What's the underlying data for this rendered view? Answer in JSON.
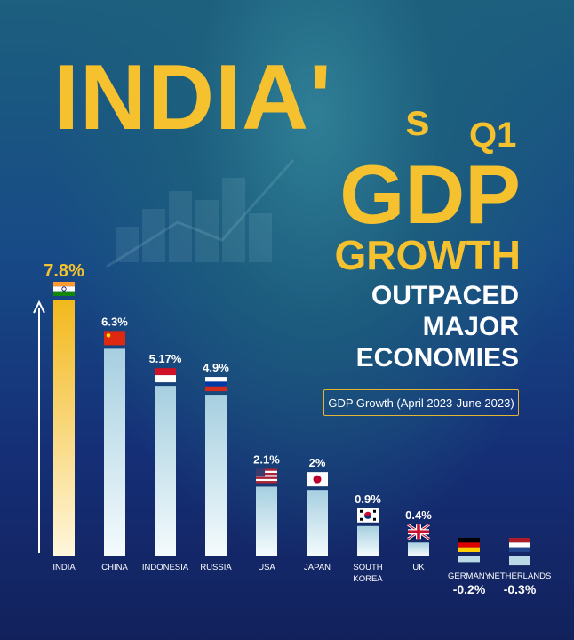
{
  "title": {
    "line1": "INDIA'",
    "line1_s": "s",
    "line1_q1": "Q1",
    "line2": "GDP",
    "line3": "GROWTH",
    "subtitle_lines": [
      "OUTPACED",
      "MAJOR",
      "ECONOMIES"
    ]
  },
  "period_label": "GDP Growth (April 2023-June 2023)",
  "colors": {
    "title": "#f6c12e",
    "highlight_bar_top": "#f2b81c",
    "highlight_bar_bottom": "#fff6dc",
    "bar_top": "#a6cfe0",
    "bar_bottom": "#f4fbfd",
    "text": "#ffffff"
  },
  "chart_data": {
    "type": "bar",
    "unit": "%",
    "categories": [
      "INDIA",
      "CHINA",
      "INDONESIA",
      "RUSSIA",
      "USA",
      "JAPAN",
      "SOUTH KOREA",
      "UK",
      "GERMANY",
      "NETHERLANDS"
    ],
    "category_lines": [
      [
        "INDIA"
      ],
      [
        "CHINA"
      ],
      [
        "INDONESIA"
      ],
      [
        "RUSSIA"
      ],
      [
        "USA"
      ],
      [
        "JAPAN"
      ],
      [
        "SOUTH",
        "KOREA"
      ],
      [
        "UK"
      ],
      [
        "GERMANY"
      ],
      [
        "NETHERLANDS"
      ]
    ],
    "values": [
      7.8,
      6.3,
      5.17,
      4.9,
      2.1,
      2,
      0.9,
      0.4,
      -0.2,
      -0.3
    ],
    "value_labels": [
      "7.8%",
      "6.3%",
      "5.17%",
      "4.9%",
      "2.1%",
      "2%",
      "0.9%",
      "0.4%",
      "-0.2%",
      "-0.3%"
    ],
    "flags": [
      "india-flag",
      "china-flag",
      "indonesia-flag",
      "russia-flag",
      "usa-flag",
      "japan-flag",
      "south-korea-flag",
      "uk-flag",
      "germany-flag",
      "netherlands-flag"
    ],
    "highlight": "INDIA",
    "axis_arrow": "up-arrow-icon"
  }
}
